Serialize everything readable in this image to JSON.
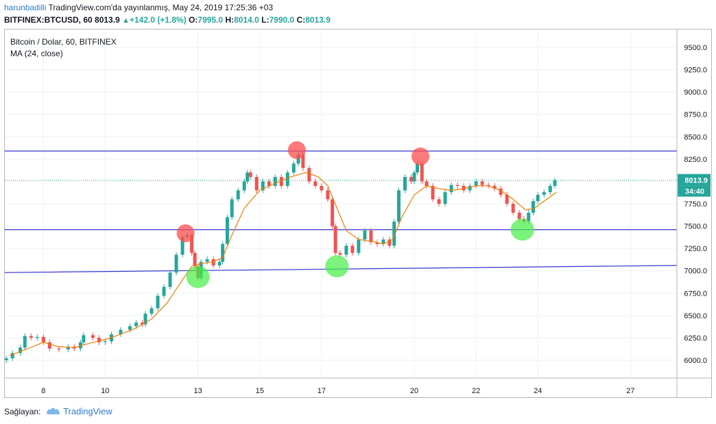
{
  "header": {
    "username": "harunbadilli",
    "published_line": "TradingView.com'da yayınlanmış, May 24, 2019 17:25:36 +03",
    "symbol": "BITFINEX:BTCUSD, 60",
    "last_price": "8013.9",
    "up_glyph": "▲",
    "change": "+142.0 (+1.8%)",
    "ohlc": {
      "o_label": "O:",
      "o_value": "7995.0",
      "h_label": "H:",
      "h_value": "8014.0",
      "l_label": "L:",
      "l_value": "7990.0",
      "c_label": "C:",
      "c_value": "8013.9"
    }
  },
  "legend": {
    "title": "Bitcoin / Dolar, 60, BITFINEX",
    "indicator": "MA (24, close)"
  },
  "price_badge": {
    "value": "8013.9",
    "countdown": "34:40"
  },
  "footer": {
    "source_label": "Sağlayan:",
    "brand": "TradingView",
    "logo_icon": "tradingview-cloud-icon"
  },
  "colors": {
    "up": "#26a69a",
    "down": "#ef5350",
    "ma": "#f57c00",
    "trendline": "#3333cc",
    "price_line": "#26a69a",
    "red_marker": "#ff4d4d",
    "green_marker": "#44ee44"
  },
  "chart_data": {
    "type": "line",
    "xlabel": "",
    "ylabel": "",
    "x_ticks": [
      {
        "label": "8",
        "day": 8
      },
      {
        "label": "10",
        "day": 10
      },
      {
        "label": "13",
        "day": 13
      },
      {
        "label": "15",
        "day": 15
      },
      {
        "label": "17",
        "day": 17
      },
      {
        "label": "20",
        "day": 20
      },
      {
        "label": "22",
        "day": 22
      },
      {
        "label": "24",
        "day": 24
      },
      {
        "label": "27",
        "day": 27
      }
    ],
    "x_range_days": [
      6.75,
      28.5
    ],
    "ylim": [
      5800,
      9700
    ],
    "y_ticks": [
      "9500.0",
      "9250.0",
      "9000.0",
      "8750.0",
      "8500.0",
      "8250.0",
      "8000.0",
      "7750.0",
      "7500.0",
      "7250.0",
      "7000.0",
      "6750.0",
      "6500.0",
      "6250.0",
      "6000.0"
    ],
    "y_tick_values": [
      9500,
      9250,
      9000,
      8750,
      8500,
      8250,
      8000,
      7750,
      7500,
      7250,
      7000,
      6750,
      6500,
      6250,
      6000
    ],
    "series": [
      {
        "kind": "price",
        "points": [
          [
            6.8,
            6020
          ],
          [
            7.0,
            6080
          ],
          [
            7.25,
            6140
          ],
          [
            7.4,
            6270
          ],
          [
            7.6,
            6250
          ],
          [
            7.8,
            6260
          ],
          [
            8.0,
            6200
          ],
          [
            8.2,
            6130
          ],
          [
            8.5,
            6120
          ],
          [
            8.8,
            6150
          ],
          [
            9.0,
            6130
          ],
          [
            9.2,
            6200
          ],
          [
            9.3,
            6280
          ],
          [
            9.6,
            6250
          ],
          [
            9.8,
            6200
          ],
          [
            10.0,
            6210
          ],
          [
            10.2,
            6290
          ],
          [
            10.5,
            6340
          ],
          [
            10.8,
            6380
          ],
          [
            11.0,
            6420
          ],
          [
            11.2,
            6400
          ],
          [
            11.3,
            6520
          ],
          [
            11.5,
            6580
          ],
          [
            11.7,
            6720
          ],
          [
            11.9,
            6820
          ],
          [
            12.1,
            6980
          ],
          [
            12.3,
            7180
          ],
          [
            12.5,
            7380
          ],
          [
            12.65,
            7400
          ],
          [
            12.8,
            7200
          ],
          [
            12.9,
            7050
          ],
          [
            13.0,
            6920
          ],
          [
            13.1,
            7100
          ],
          [
            13.3,
            7130
          ],
          [
            13.5,
            7060
          ],
          [
            13.7,
            7100
          ],
          [
            13.8,
            7300
          ],
          [
            13.95,
            7600
          ],
          [
            14.1,
            7800
          ],
          [
            14.3,
            7900
          ],
          [
            14.5,
            8000
          ],
          [
            14.6,
            8100
          ],
          [
            14.7,
            8050
          ],
          [
            14.9,
            7900
          ],
          [
            15.1,
            8000
          ],
          [
            15.3,
            7950
          ],
          [
            15.5,
            8050
          ],
          [
            15.7,
            7950
          ],
          [
            15.9,
            8100
          ],
          [
            16.1,
            8200
          ],
          [
            16.25,
            8300
          ],
          [
            16.4,
            8150
          ],
          [
            16.6,
            8000
          ],
          [
            16.8,
            7950
          ],
          [
            17.0,
            7900
          ],
          [
            17.2,
            7800
          ],
          [
            17.35,
            7500
          ],
          [
            17.45,
            7200
          ],
          [
            17.6,
            7180
          ],
          [
            17.8,
            7280
          ],
          [
            18.0,
            7200
          ],
          [
            18.2,
            7350
          ],
          [
            18.4,
            7450
          ],
          [
            18.6,
            7320
          ],
          [
            18.8,
            7300
          ],
          [
            19.0,
            7350
          ],
          [
            19.2,
            7280
          ],
          [
            19.35,
            7550
          ],
          [
            19.5,
            7900
          ],
          [
            19.7,
            8050
          ],
          [
            19.9,
            8000
          ],
          [
            20.0,
            8100
          ],
          [
            20.1,
            8200
          ],
          [
            20.25,
            8000
          ],
          [
            20.4,
            7950
          ],
          [
            20.6,
            7800
          ],
          [
            20.8,
            7750
          ],
          [
            21.0,
            7880
          ],
          [
            21.2,
            7960
          ],
          [
            21.4,
            7950
          ],
          [
            21.6,
            7900
          ],
          [
            21.8,
            7950
          ],
          [
            22.0,
            8000
          ],
          [
            22.2,
            7960
          ],
          [
            22.4,
            7950
          ],
          [
            22.6,
            7920
          ],
          [
            22.8,
            7850
          ],
          [
            23.0,
            7750
          ],
          [
            23.2,
            7650
          ],
          [
            23.4,
            7580
          ],
          [
            23.55,
            7550
          ],
          [
            23.7,
            7650
          ],
          [
            23.85,
            7780
          ],
          [
            24.0,
            7850
          ],
          [
            24.2,
            7880
          ],
          [
            24.4,
            7950
          ],
          [
            24.55,
            8013.9
          ]
        ]
      },
      {
        "kind": "ma",
        "name": "MA (24, close)",
        "points": [
          [
            6.9,
            6050
          ],
          [
            7.5,
            6130
          ],
          [
            8.0,
            6200
          ],
          [
            8.5,
            6150
          ],
          [
            9.0,
            6140
          ],
          [
            9.5,
            6190
          ],
          [
            10.0,
            6230
          ],
          [
            10.5,
            6290
          ],
          [
            11.0,
            6360
          ],
          [
            11.5,
            6460
          ],
          [
            12.0,
            6640
          ],
          [
            12.5,
            6900
          ],
          [
            12.8,
            7050
          ],
          [
            13.1,
            7080
          ],
          [
            13.5,
            7100
          ],
          [
            13.8,
            7150
          ],
          [
            14.1,
            7400
          ],
          [
            14.5,
            7700
          ],
          [
            15.0,
            7900
          ],
          [
            15.5,
            7980
          ],
          [
            16.0,
            8050
          ],
          [
            16.5,
            8100
          ],
          [
            16.9,
            8050
          ],
          [
            17.2,
            7950
          ],
          [
            17.5,
            7700
          ],
          [
            17.8,
            7450
          ],
          [
            18.2,
            7350
          ],
          [
            18.6,
            7330
          ],
          [
            19.0,
            7300
          ],
          [
            19.3,
            7350
          ],
          [
            19.6,
            7600
          ],
          [
            20.0,
            7850
          ],
          [
            20.4,
            7950
          ],
          [
            20.8,
            7920
          ],
          [
            21.2,
            7900
          ],
          [
            21.6,
            7920
          ],
          [
            22.0,
            7950
          ],
          [
            22.4,
            7950
          ],
          [
            22.8,
            7900
          ],
          [
            23.2,
            7800
          ],
          [
            23.6,
            7680
          ],
          [
            23.9,
            7700
          ],
          [
            24.2,
            7780
          ],
          [
            24.6,
            7880
          ]
        ]
      }
    ],
    "horizontal_lines": [
      8340,
      7460
    ],
    "trendline": {
      "from": [
        6.75,
        6980
      ],
      "to": [
        28.5,
        7060
      ]
    },
    "last_price_line": 8013.9,
    "markers": [
      {
        "color": "red",
        "day": 12.6,
        "price": 7420
      },
      {
        "color": "red",
        "day": 16.2,
        "price": 8350
      },
      {
        "color": "red",
        "day": 20.2,
        "price": 8280
      },
      {
        "color": "green",
        "day": 13.0,
        "price": 6930
      },
      {
        "color": "green",
        "day": 17.5,
        "price": 7050
      },
      {
        "color": "green",
        "day": 23.5,
        "price": 7460
      }
    ]
  }
}
